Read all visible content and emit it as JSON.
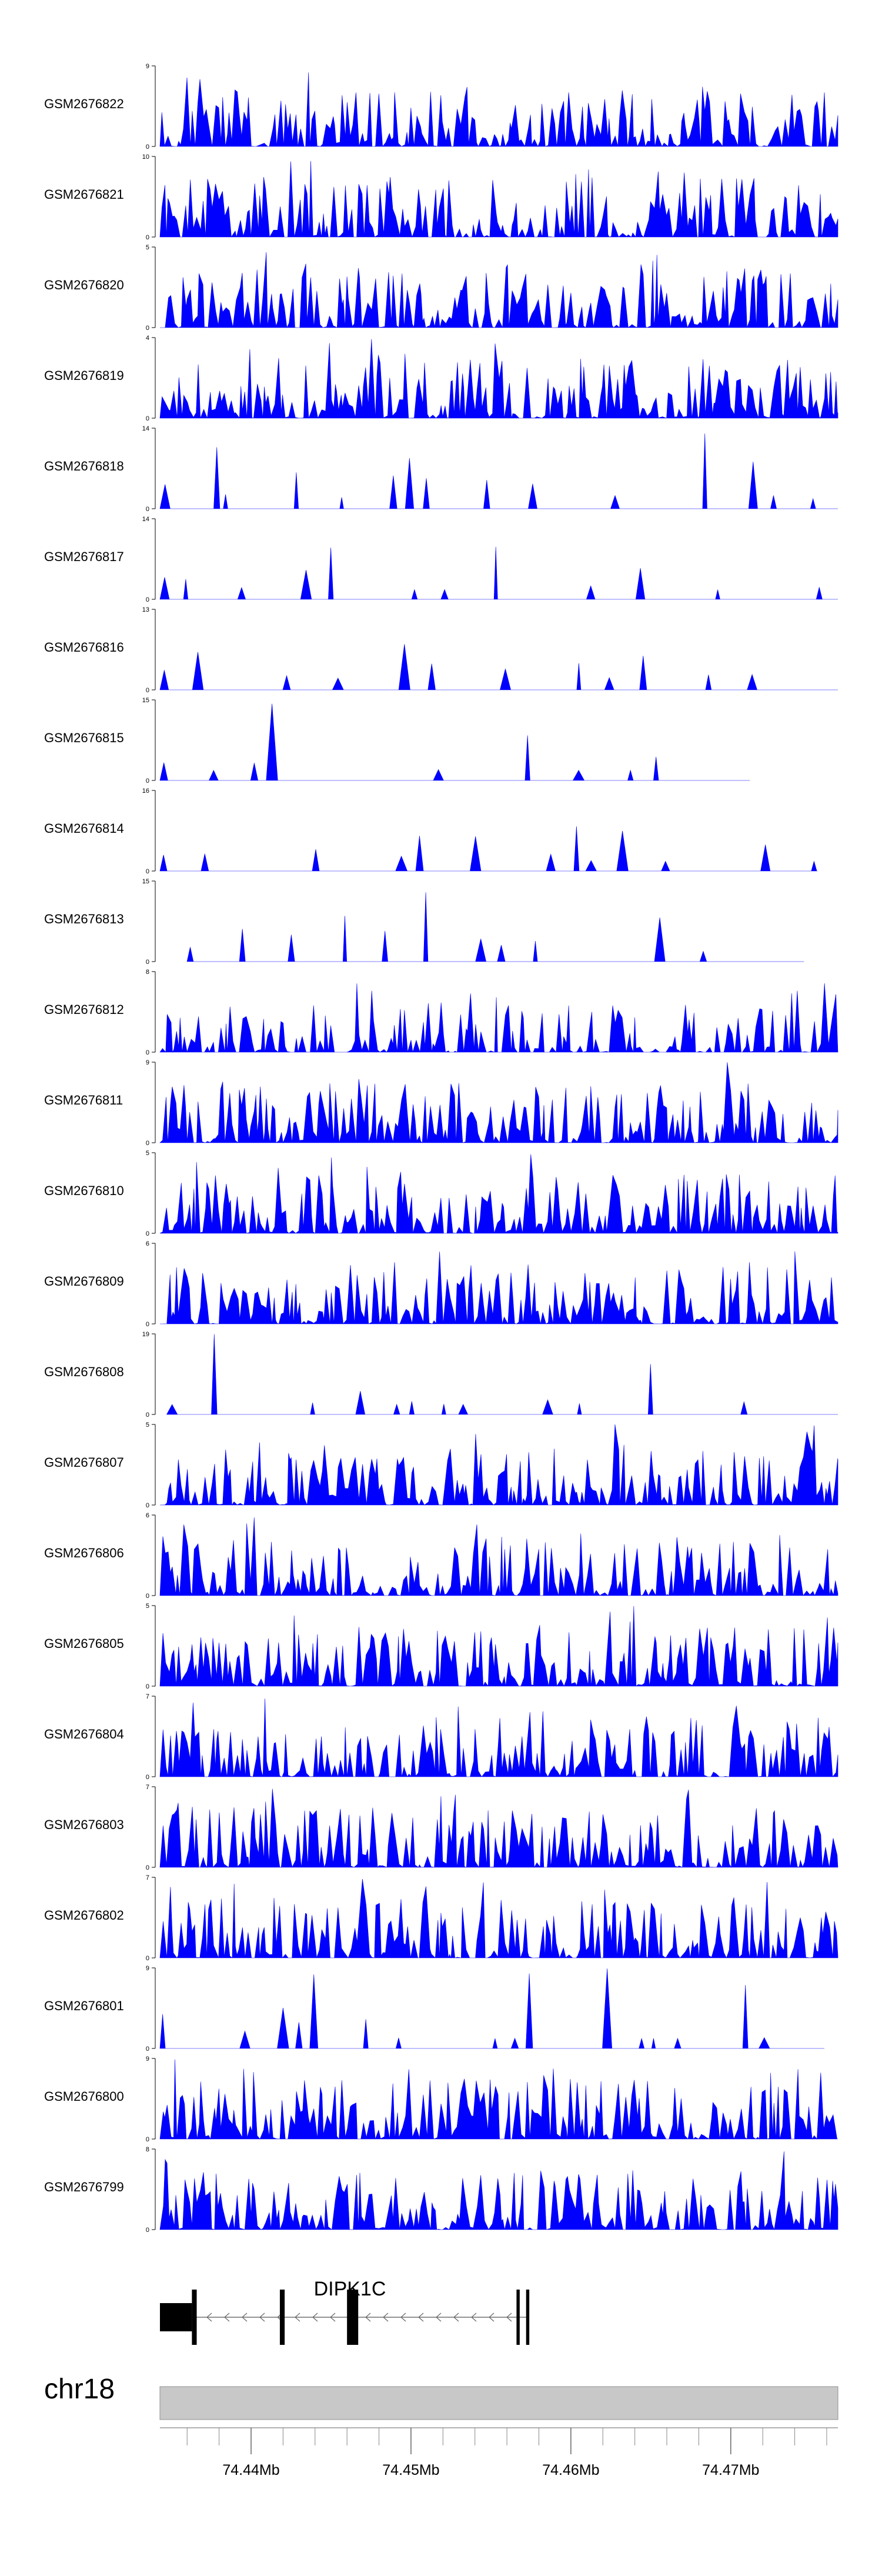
{
  "chart_data": {
    "type": "area",
    "color": "#0000ff",
    "x_range": [
      74.4343,
      74.4767
    ],
    "tracks": [
      {
        "label": "GSM2676822",
        "ymax": 9,
        "ymin": 0,
        "density": 0.85,
        "seed": 1
      },
      {
        "label": "GSM2676821",
        "ymax": 10,
        "ymin": 0,
        "density": 0.8,
        "seed": 2
      },
      {
        "label": "GSM2676820",
        "ymax": 5,
        "ymin": 0,
        "density": 0.9,
        "seed": 3
      },
      {
        "label": "GSM2676819",
        "ymax": 4,
        "ymin": 0,
        "density": 0.95,
        "seed": 4
      },
      {
        "label": "GSM2676818",
        "ymax": 14,
        "ymin": 0,
        "density": 0.45,
        "seed": 5
      },
      {
        "label": "GSM2676817",
        "ymax": 14,
        "ymin": 0,
        "density": 0.45,
        "seed": 6
      },
      {
        "label": "GSM2676816",
        "ymax": 13,
        "ymin": 0,
        "density": 0.35,
        "seed": 7
      },
      {
        "label": "GSM2676815",
        "ymax": 15,
        "ymin": 0,
        "density": 0.25,
        "seed": 8,
        "end": 0.87
      },
      {
        "label": "GSM2676814",
        "ymax": 16,
        "ymin": 0,
        "density": 0.4,
        "seed": 9,
        "end": 0.97
      },
      {
        "label": "GSM2676813",
        "ymax": 15,
        "ymin": 0,
        "density": 0.35,
        "seed": 10,
        "start": 0.04,
        "end": 0.95
      },
      {
        "label": "GSM2676812",
        "ymax": 8,
        "ymin": 0,
        "density": 0.7,
        "seed": 11
      },
      {
        "label": "GSM2676811",
        "ymax": 9,
        "ymin": 0,
        "density": 0.9,
        "seed": 12
      },
      {
        "label": "GSM2676810",
        "ymax": 5,
        "ymin": 0,
        "density": 0.92,
        "seed": 13
      },
      {
        "label": "GSM2676809",
        "ymax": 6,
        "ymin": 0,
        "density": 0.92,
        "seed": 14
      },
      {
        "label": "GSM2676808",
        "ymax": 19,
        "ymin": 0,
        "density": 0.3,
        "seed": 15,
        "start": 0.01
      },
      {
        "label": "GSM2676807",
        "ymax": 5,
        "ymin": 0,
        "density": 0.95,
        "seed": 16
      },
      {
        "label": "GSM2676806",
        "ymax": 6,
        "ymin": 0,
        "density": 0.85,
        "seed": 17
      },
      {
        "label": "GSM2676805",
        "ymax": 5,
        "ymin": 0,
        "density": 0.95,
        "seed": 18
      },
      {
        "label": "GSM2676804",
        "ymax": 7,
        "ymin": 0,
        "density": 0.85,
        "seed": 19
      },
      {
        "label": "GSM2676803",
        "ymax": 7,
        "ymin": 0,
        "density": 0.88,
        "seed": 20
      },
      {
        "label": "GSM2676802",
        "ymax": 7,
        "ymin": 0,
        "density": 0.85,
        "seed": 21
      },
      {
        "label": "GSM2676801",
        "ymax": 9,
        "ymin": 0,
        "density": 0.5,
        "seed": 22,
        "end": 0.98
      },
      {
        "label": "GSM2676800",
        "ymax": 9,
        "ymin": 0,
        "density": 0.85,
        "seed": 23
      },
      {
        "label": "GSM2676799",
        "ymax": 8,
        "ymin": 0,
        "density": 0.9,
        "seed": 24
      }
    ],
    "gene": {
      "name": "DIPK1C",
      "strand": "-",
      "start": 74.4343,
      "end": 74.4573,
      "exons": [
        {
          "start": 74.4343,
          "end": 74.4363,
          "type": "utr"
        },
        {
          "start": 74.4363,
          "end": 74.4366,
          "type": "cds"
        },
        {
          "start": 74.4418,
          "end": 74.4421,
          "type": "cds"
        },
        {
          "start": 74.446,
          "end": 74.4467,
          "type": "cds"
        },
        {
          "start": 74.4566,
          "end": 74.4568,
          "type": "cds"
        },
        {
          "start": 74.4572,
          "end": 74.4574,
          "type": "cds"
        }
      ]
    },
    "chromosome": "chr18",
    "axis_ticks": [
      74.44,
      74.45,
      74.46,
      74.47
    ],
    "axis_tick_labels": [
      "74.44Mb",
      "74.45Mb",
      "74.46Mb",
      "74.47Mb"
    ],
    "minor_tick_step": 0.002
  }
}
